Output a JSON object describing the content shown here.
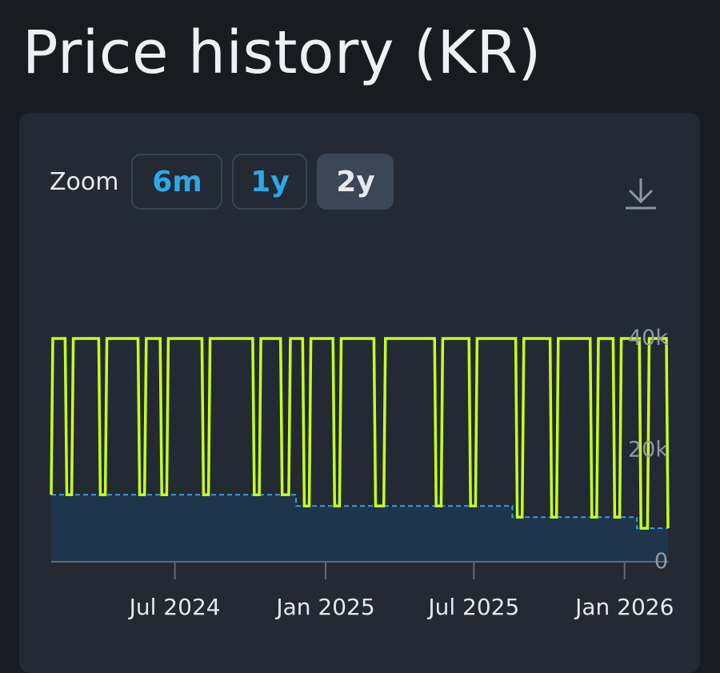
{
  "page": {
    "title": "Price history (KR)"
  },
  "zoom": {
    "label": "Zoom",
    "options": [
      {
        "label": "6m",
        "active": false
      },
      {
        "label": "1y",
        "active": false
      },
      {
        "label": "2y",
        "active": true
      }
    ]
  },
  "toolbar": {
    "download_icon": "download-icon"
  },
  "colors": {
    "page_bg": "#181b22",
    "card_bg": "#232a34",
    "price_line": "#c6ff1e",
    "baseline": "#2f9fe0",
    "baseline_fill": "#1d3750",
    "button_active_bg": "#3b4656",
    "button_text": "#2ea7e6"
  },
  "chart_data": {
    "type": "line",
    "step": true,
    "title": "",
    "xlabel": "",
    "ylabel": "",
    "xlim": [
      "2024-02-01",
      "2026-02-23"
    ],
    "ylim": [
      0,
      40000
    ],
    "y_axis_side": "right",
    "y_ticks": [
      {
        "value": 0,
        "label": "0"
      },
      {
        "value": 20000,
        "label": "20k"
      },
      {
        "value": 40000,
        "label": "40k"
      }
    ],
    "x_ticks": [
      {
        "value": "2024-07-01",
        "label": "Jul 2024"
      },
      {
        "value": "2025-01-01",
        "label": "Jan 2025"
      },
      {
        "value": "2025-07-01",
        "label": "Jul 2025"
      },
      {
        "value": "2026-01-01",
        "label": "Jan 2026"
      }
    ],
    "grid": false,
    "legend": "none",
    "series": [
      {
        "style": "solid-step",
        "points": [
          [
            "2024-02-01",
            12000
          ],
          [
            "2024-02-03",
            40000
          ],
          [
            "2024-02-18",
            40000
          ],
          [
            "2024-02-20",
            12000
          ],
          [
            "2024-02-26",
            12000
          ],
          [
            "2024-02-28",
            40000
          ],
          [
            "2024-03-30",
            40000
          ],
          [
            "2024-04-01",
            12000
          ],
          [
            "2024-04-07",
            12000
          ],
          [
            "2024-04-09",
            40000
          ],
          [
            "2024-05-17",
            40000
          ],
          [
            "2024-05-19",
            12000
          ],
          [
            "2024-05-25",
            12000
          ],
          [
            "2024-05-27",
            40000
          ],
          [
            "2024-06-13",
            40000
          ],
          [
            "2024-06-15",
            12000
          ],
          [
            "2024-06-21",
            12000
          ],
          [
            "2024-06-23",
            40000
          ],
          [
            "2024-08-03",
            40000
          ],
          [
            "2024-08-05",
            12000
          ],
          [
            "2024-08-11",
            12000
          ],
          [
            "2024-08-13",
            40000
          ],
          [
            "2024-10-04",
            40000
          ],
          [
            "2024-10-06",
            12000
          ],
          [
            "2024-10-12",
            12000
          ],
          [
            "2024-10-14",
            40000
          ],
          [
            "2024-11-07",
            40000
          ],
          [
            "2024-11-09",
            12000
          ],
          [
            "2024-11-17",
            12000
          ],
          [
            "2024-11-19",
            40000
          ],
          [
            "2024-12-04",
            40000
          ],
          [
            "2024-12-06",
            10000
          ],
          [
            "2024-12-12",
            10000
          ],
          [
            "2024-12-14",
            40000
          ],
          [
            "2025-01-10",
            40000
          ],
          [
            "2025-01-12",
            10000
          ],
          [
            "2025-01-18",
            10000
          ],
          [
            "2025-01-20",
            40000
          ],
          [
            "2025-03-01",
            40000
          ],
          [
            "2025-03-03",
            10000
          ],
          [
            "2025-03-13",
            10000
          ],
          [
            "2025-03-15",
            40000
          ],
          [
            "2025-05-14",
            40000
          ],
          [
            "2025-05-16",
            10000
          ],
          [
            "2025-05-22",
            10000
          ],
          [
            "2025-05-24",
            40000
          ],
          [
            "2025-06-25",
            40000
          ],
          [
            "2025-06-27",
            10000
          ],
          [
            "2025-07-03",
            10000
          ],
          [
            "2025-07-05",
            40000
          ],
          [
            "2025-08-21",
            40000
          ],
          [
            "2025-08-23",
            8000
          ],
          [
            "2025-08-29",
            8000
          ],
          [
            "2025-08-31",
            40000
          ],
          [
            "2025-10-02",
            40000
          ],
          [
            "2025-10-04",
            8000
          ],
          [
            "2025-10-10",
            8000
          ],
          [
            "2025-10-12",
            40000
          ],
          [
            "2025-11-20",
            40000
          ],
          [
            "2025-11-22",
            8000
          ],
          [
            "2025-11-28",
            8000
          ],
          [
            "2025-11-30",
            40000
          ],
          [
            "2025-12-18",
            40000
          ],
          [
            "2025-12-20",
            8000
          ],
          [
            "2025-12-26",
            8000
          ],
          [
            "2025-12-28",
            40000
          ],
          [
            "2026-01-19",
            40000
          ],
          [
            "2026-01-21",
            6000
          ],
          [
            "2026-01-29",
            6000
          ],
          [
            "2026-01-31",
            40000
          ],
          [
            "2026-02-21",
            40000
          ],
          [
            "2026-02-23",
            6000
          ]
        ]
      },
      {
        "style": "dashed-step-filled",
        "points": [
          [
            "2024-02-01",
            12000
          ],
          [
            "2024-11-26",
            12000
          ],
          [
            "2024-11-26",
            10000
          ],
          [
            "2025-08-17",
            10000
          ],
          [
            "2025-08-17",
            8000
          ],
          [
            "2026-01-16",
            8000
          ],
          [
            "2026-01-16",
            6000
          ],
          [
            "2026-02-23",
            6000
          ]
        ]
      }
    ]
  }
}
